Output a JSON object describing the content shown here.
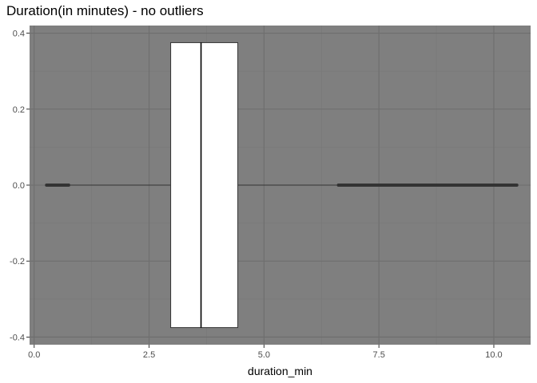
{
  "chart_data": {
    "type": "boxplot",
    "title": "Duration(in minutes) - no outliers",
    "xlabel": "duration_min",
    "ylabel": "",
    "xlim": [
      -0.1,
      10.8
    ],
    "ylim": [
      -0.4,
      0.4
    ],
    "x_ticks": [
      0.0,
      2.5,
      5.0,
      7.5,
      10.0
    ],
    "x_tick_labels": [
      "0.0",
      "2.5",
      "5.0",
      "7.5",
      "10.0"
    ],
    "y_ticks": [
      -0.4,
      -0.2,
      0.0,
      0.2,
      0.4
    ],
    "y_tick_labels": [
      "-0.4",
      "-0.2",
      "0.0",
      "0.2",
      "0.4"
    ],
    "box": {
      "min": 0.27,
      "q1": 2.97,
      "median": 3.63,
      "q3": 4.43,
      "max": 6.62,
      "box_half_height": 0.375
    },
    "outlier_ranges": [
      {
        "from": 0.27,
        "to": 0.75
      },
      {
        "from": 6.62,
        "to": 10.5
      }
    ],
    "grid": true,
    "colors": {
      "panel_bg": "#7f7f7f",
      "grid_major": "#6e6e6e",
      "grid_minor": "#777777",
      "box_fill": "#ffffff",
      "line": "#333333"
    }
  }
}
